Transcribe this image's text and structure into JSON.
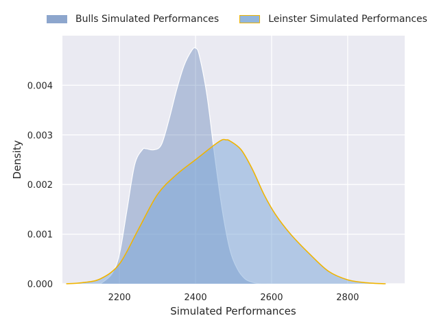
{
  "chart_data": {
    "type": "area",
    "xlabel": "Simulated Performances",
    "ylabel": "Density",
    "xlim": [
      2050,
      2950
    ],
    "ylim": [
      0,
      0.005
    ],
    "x_ticks": [
      2200,
      2400,
      2600,
      2800
    ],
    "x_tick_labels": [
      "2200",
      "2400",
      "2600",
      "2800"
    ],
    "y_ticks": [
      0.0,
      0.001,
      0.002,
      0.003,
      0.004
    ],
    "y_tick_labels": [
      "0.000",
      "0.001",
      "0.002",
      "0.003",
      "0.004"
    ],
    "grid": true,
    "legend_position": "top",
    "background": "#eaeaf2",
    "series": [
      {
        "name": "Bulls Simulated Performances",
        "fill": "#4c72b0",
        "fill_opacity": 0.35,
        "edge": "#ffffff",
        "x": [
          2150,
          2180,
          2200,
          2220,
          2240,
          2260,
          2270,
          2290,
          2310,
          2330,
          2350,
          2370,
          2390,
          2400,
          2410,
          2430,
          2450,
          2470,
          2490,
          2510,
          2530,
          2550,
          2570,
          2590,
          2600
        ],
        "y": [
          0.0,
          0.0002,
          0.0006,
          0.0015,
          0.0024,
          0.0027,
          0.00272,
          0.0027,
          0.0028,
          0.0033,
          0.0039,
          0.0044,
          0.0047,
          0.00475,
          0.0046,
          0.0038,
          0.0026,
          0.0015,
          0.0007,
          0.0003,
          0.0001,
          3e-05,
          0.0,
          0.0,
          0.0
        ]
      },
      {
        "name": "Leinster Simulated Performances",
        "fill": "#7aa6d8",
        "fill_opacity": 0.5,
        "edge": "#f0b400",
        "x": [
          2060,
          2100,
          2150,
          2200,
          2250,
          2300,
          2350,
          2400,
          2450,
          2470,
          2480,
          2490,
          2520,
          2550,
          2580,
          2610,
          2650,
          2700,
          2750,
          2800,
          2850,
          2900
        ],
        "y": [
          0.0,
          2e-05,
          0.0001,
          0.0004,
          0.0011,
          0.0018,
          0.0022,
          0.0025,
          0.0028,
          0.0029,
          0.0029,
          0.00288,
          0.0027,
          0.0023,
          0.0018,
          0.0014,
          0.001,
          0.0006,
          0.00025,
          8e-05,
          2e-05,
          0.0
        ]
      }
    ]
  }
}
